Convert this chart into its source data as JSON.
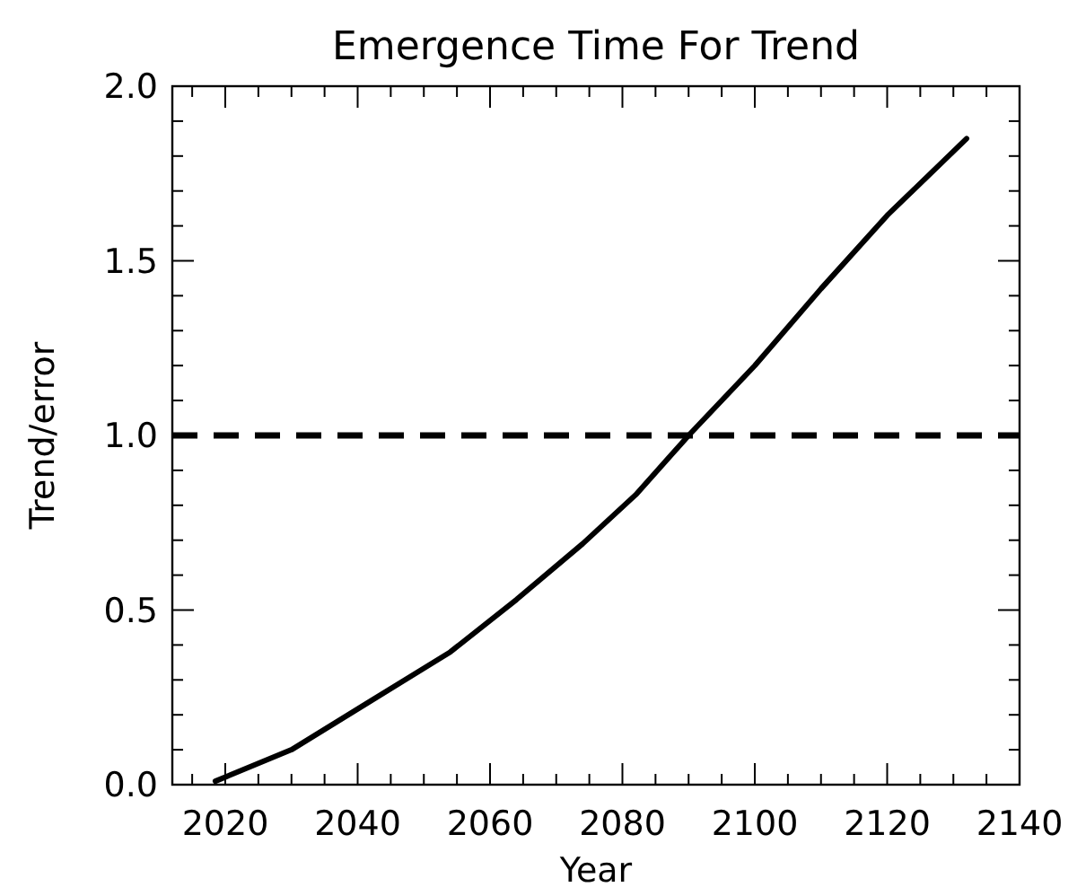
{
  "chart_data": {
    "type": "line",
    "title": "Emergence Time For Trend",
    "xlabel": "Year",
    "ylabel": "Trend/error",
    "x": [
      2018.5,
      2030,
      2042,
      2054,
      2064,
      2074,
      2082,
      2090,
      2100,
      2110,
      2120,
      2132
    ],
    "series": [
      {
        "color": "#000000",
        "values": [
          0.01,
          0.1,
          0.24,
          0.38,
          0.53,
          0.69,
          0.83,
          1.0,
          1.2,
          1.42,
          1.63,
          1.85
        ]
      }
    ],
    "xlim": [
      2012,
      2140
    ],
    "xticks": [
      {
        "value": 2015,
        "label": null
      },
      2020,
      {
        "value": 2025,
        "label": null
      },
      {
        "value": 2030,
        "label": null
      },
      {
        "value": 2035,
        "label": null
      },
      2040,
      {
        "value": 2045,
        "label": null
      },
      {
        "value": 2050,
        "label": null
      },
      {
        "value": 2055,
        "label": null
      },
      2060,
      {
        "value": 2065,
        "label": null
      },
      {
        "value": 2070,
        "label": null
      },
      {
        "value": 2075,
        "label": null
      },
      2080,
      {
        "value": 2085,
        "label": null
      },
      {
        "value": 2090,
        "label": null
      },
      {
        "value": 2095,
        "label": null
      },
      2100,
      {
        "value": 2105,
        "label": null
      },
      {
        "value": 2110,
        "label": null
      },
      {
        "value": 2115,
        "label": null
      },
      2120,
      {
        "value": 2125,
        "label": null
      },
      {
        "value": 2130,
        "label": null
      },
      {
        "value": 2135,
        "label": null
      },
      2140
    ],
    "ylim": [
      0,
      2
    ],
    "yticks": [
      {
        "value": 0,
        "label": "0.0"
      },
      {
        "value": 0.1,
        "label": null
      },
      {
        "value": 0.2,
        "label": null
      },
      {
        "value": 0.3,
        "label": null
      },
      {
        "value": 0.4,
        "label": null
      },
      0.5,
      {
        "value": 0.6,
        "label": null
      },
      {
        "value": 0.7,
        "label": null
      },
      {
        "value": 0.8,
        "label": null
      },
      {
        "value": 0.9,
        "label": null
      },
      {
        "value": 1,
        "label": "1.0"
      },
      {
        "value": 1.1,
        "label": null
      },
      {
        "value": 1.2,
        "label": null
      },
      {
        "value": 1.3,
        "label": null
      },
      {
        "value": 1.4,
        "label": null
      },
      1.5,
      {
        "value": 1.6,
        "label": null
      },
      {
        "value": 1.7,
        "label": null
      },
      {
        "value": 1.8,
        "label": null
      },
      {
        "value": 1.9,
        "label": null
      },
      {
        "value": 2,
        "label": "2.0"
      }
    ],
    "ref_lines": [
      {
        "axis": "y",
        "value": 1,
        "color": "#000000",
        "line_style": "dashed"
      }
    ],
    "grid": false,
    "line_style": "solid"
  }
}
